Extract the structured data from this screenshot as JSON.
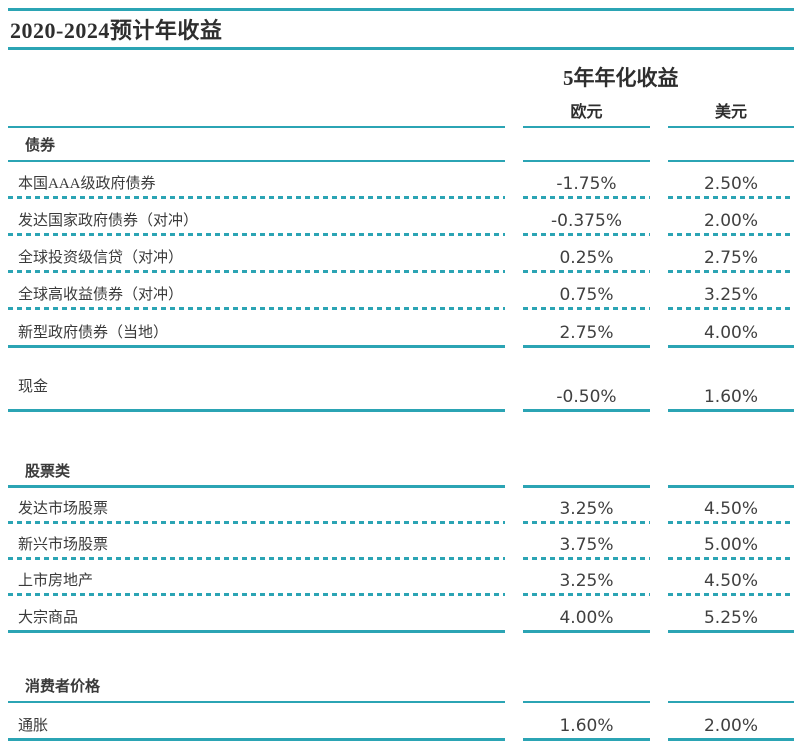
{
  "page": {
    "title": "2020-2024预计年收益"
  },
  "colors": {
    "accent_teal": "#2BA4B4",
    "title_text": "#2e2e2e",
    "label_text": "#3a3a3a",
    "value_text": "#404040"
  },
  "table": {
    "column_group_header": "5年年化收益",
    "columns": [
      "欧元",
      "美元"
    ],
    "sections": [
      {
        "header": "债券",
        "rows": [
          {
            "label": "本国AAA级政府债券",
            "eur": "-1.75%",
            "usd": "2.50%"
          },
          {
            "label": "发达国家政府债券（对冲）",
            "eur": "-0.375%",
            "usd": "2.00%"
          },
          {
            "label": "全球投资级信贷（对冲）",
            "eur": "0.25%",
            "usd": "2.75%"
          },
          {
            "label": "全球高收益债券（对冲）",
            "eur": "0.75%",
            "usd": "3.25%"
          },
          {
            "label": "新型政府债券（当地）",
            "eur": "2.75%",
            "usd": "4.00%"
          }
        ]
      },
      {
        "header": null,
        "rows": [
          {
            "label": "现金",
            "eur": "-0.50%",
            "usd": "1.60%"
          }
        ]
      },
      {
        "header": "股票类",
        "rows": [
          {
            "label": "发达市场股票",
            "eur": "3.25%",
            "usd": "4.50%"
          },
          {
            "label": "新兴市场股票",
            "eur": "3.75%",
            "usd": "5.00%"
          },
          {
            "label": "上市房地产",
            "eur": "3.25%",
            "usd": "4.50%"
          },
          {
            "label": "大宗商品",
            "eur": "4.00%",
            "usd": "5.25%"
          }
        ]
      },
      {
        "header": "消费者价格",
        "rows": [
          {
            "label": "通胀",
            "eur": "1.60%",
            "usd": "2.00%"
          }
        ]
      }
    ]
  }
}
